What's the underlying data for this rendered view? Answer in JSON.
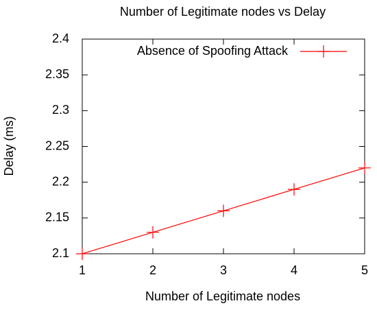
{
  "chart_data": {
    "type": "line",
    "title": "Number of Legitimate nodes vs Delay",
    "x_label": "Number of Legitimate nodes",
    "y_label": "Delay (ms)",
    "x": [
      1,
      2,
      3,
      4,
      5
    ],
    "series": [
      {
        "name": "Absence of Spoofing Attack",
        "color": "#ff0000",
        "values": [
          2.1,
          2.13,
          2.16,
          2.19,
          2.22
        ]
      }
    ],
    "xlim": [
      1,
      5
    ],
    "xticks": [
      1,
      2,
      3,
      4,
      5
    ],
    "ylim": [
      2.1,
      2.4
    ],
    "yticks": [
      2.1,
      2.15,
      2.2,
      2.25,
      2.3,
      2.35,
      2.4
    ],
    "grid": false,
    "legend": "top-right"
  }
}
